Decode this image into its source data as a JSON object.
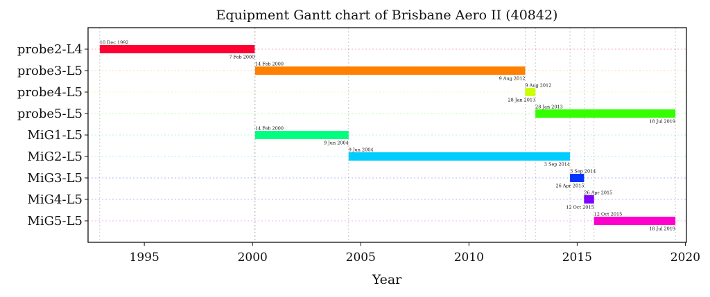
{
  "chart_data": {
    "type": "gantt",
    "title": "Equipment Gantt chart of Brisbane Aero II (40842)",
    "xlabel": "Year",
    "ylabel": "",
    "xlim": [
      1992.4,
      2020.05
    ],
    "xticks": [
      1995,
      2000,
      2005,
      2010,
      2015,
      2020
    ],
    "grid": true,
    "tasks": [
      {
        "name": "probe2-L4",
        "start": 1992.94,
        "end": 2000.1,
        "start_label": "10 Dec 1992",
        "end_label": "7 Feb 2000",
        "color": "#ff0033"
      },
      {
        "name": "probe3-L5",
        "start": 2000.12,
        "end": 2012.6,
        "start_label": "14 Feb 2000",
        "end_label": "9 Aug 2012",
        "color": "#ff8000"
      },
      {
        "name": "probe4-L5",
        "start": 2012.6,
        "end": 2013.07,
        "start_label": "9 Aug 2012",
        "end_label": "28 Jan 2013",
        "color": "#ccff00"
      },
      {
        "name": "probe5-L5",
        "start": 2013.07,
        "end": 2019.54,
        "start_label": "28 Jan 2013",
        "end_label": "18 Jul 2019",
        "color": "#33ff00"
      },
      {
        "name": "MiG1-L5",
        "start": 2000.12,
        "end": 2004.44,
        "start_label": "14 Feb 2000",
        "end_label": "9 Jun 2004",
        "color": "#00ff80"
      },
      {
        "name": "MiG2-L5",
        "start": 2004.44,
        "end": 2014.67,
        "start_label": "9 Jun 2004",
        "end_label": "3 Sep 2014",
        "color": "#00ccff"
      },
      {
        "name": "MiG3-L5",
        "start": 2014.67,
        "end": 2015.32,
        "start_label": "3 Sep 2014",
        "end_label": "26 Apr 2015",
        "color": "#0033ff"
      },
      {
        "name": "MiG4-L5",
        "start": 2015.32,
        "end": 2015.78,
        "start_label": "26 Apr 2015",
        "end_label": "12 Oct 2015",
        "color": "#8000ff"
      },
      {
        "name": "MiG5-L5",
        "start": 2015.78,
        "end": 2019.54,
        "start_label": "12 Oct 2015",
        "end_label": "18 Jul 2019",
        "color": "#ff00cc"
      }
    ]
  }
}
